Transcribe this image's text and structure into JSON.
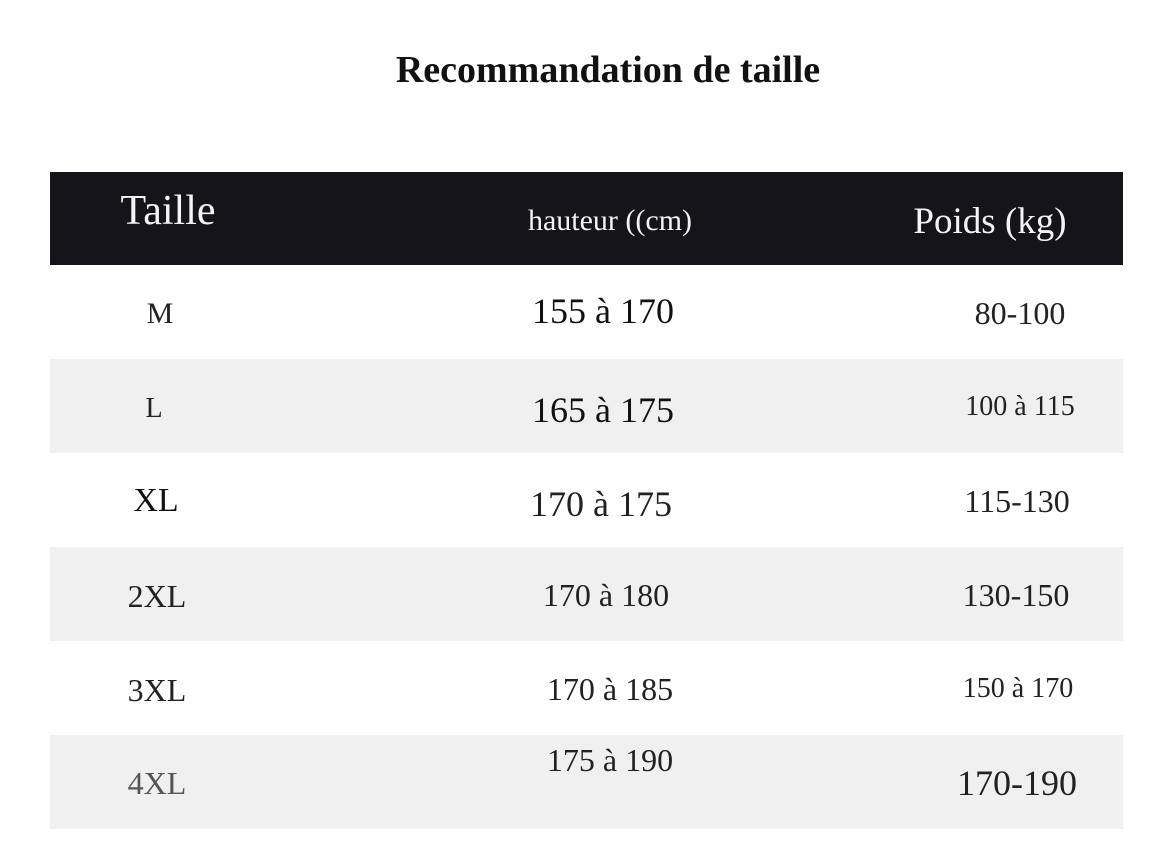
{
  "title": "Recommandation de taille",
  "table": {
    "headers": [
      "Taille",
      "hauteur ((cm)",
      "Poids (kg)"
    ],
    "rows": [
      {
        "size": "M",
        "height": "155 à 170",
        "weight": "80-100"
      },
      {
        "size": "L",
        "height": "165 à 175",
        "weight": "100 à 115"
      },
      {
        "size": "XL",
        "height": "170 à 175",
        "weight": "115-130"
      },
      {
        "size": "2XL",
        "height": "170 à 180",
        "weight": "130-150"
      },
      {
        "size": "3XL",
        "height": "170 à 185",
        "weight": "150 à 170"
      },
      {
        "size": "4XL",
        "height": "175 à 190",
        "weight": "170-190"
      }
    ],
    "colors": {
      "header_bg": "#151418",
      "header_text": "#f4f4f4",
      "stripe_bg": "#f0f0f0"
    }
  }
}
